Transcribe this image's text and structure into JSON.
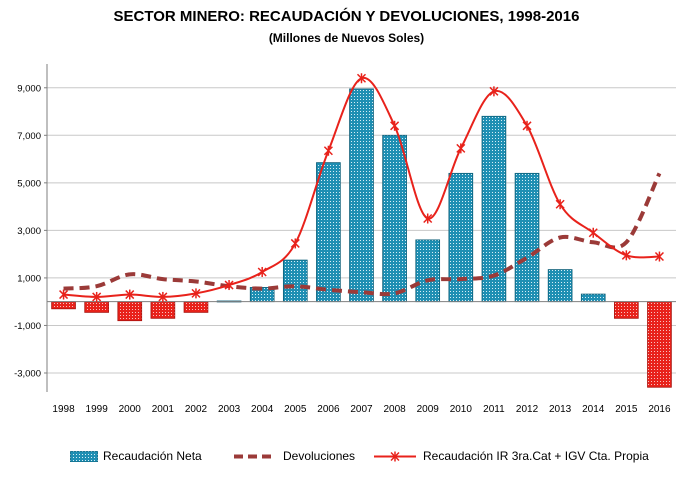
{
  "chart_data": {
    "type": "bar",
    "title": "SECTOR MINERO: RECAUDACIÓN Y DEVOLUCIONES, 1998-2016",
    "subtitle": "(Millones de Nuevos Soles)",
    "categories": [
      "1998",
      "1999",
      "2000",
      "2001",
      "2002",
      "2003",
      "2004",
      "2005",
      "2006",
      "2007",
      "2008",
      "2009",
      "2010",
      "2011",
      "2012",
      "2013",
      "2014",
      "2015",
      "2016"
    ],
    "ylim": [
      -3800,
      10000
    ],
    "yticks": [
      -3000,
      -1000,
      1000,
      3000,
      5000,
      7000,
      9000
    ],
    "ytick_labels": [
      "-3,000",
      "-1,000",
      "1,000",
      "3,000",
      "5,000",
      "7,000",
      "9,000"
    ],
    "grid": true,
    "legend_position": "bottom",
    "series": [
      {
        "name": "Recaudación Neta",
        "kind": "bar",
        "color": "#1f8fb3",
        "negative_color": "#e8221b",
        "values": [
          -300,
          -450,
          -800,
          -700,
          -450,
          30,
          600,
          1750,
          5850,
          8950,
          7000,
          2600,
          5400,
          7800,
          5400,
          1350,
          320,
          -700,
          -3600
        ]
      },
      {
        "name": "Devoluciones",
        "kind": "line-dashed",
        "color": "#9b3a38",
        "values": [
          550,
          650,
          1150,
          950,
          850,
          650,
          550,
          650,
          500,
          400,
          350,
          900,
          950,
          1100,
          1850,
          2700,
          2500,
          2500,
          5400
        ]
      },
      {
        "name": "Recaudación IR 3ra.Cat + IGV Cta. Propia",
        "kind": "line-marker",
        "color": "#e8221b",
        "values": [
          300,
          200,
          300,
          200,
          350,
          700,
          1250,
          2450,
          6350,
          9400,
          7400,
          3500,
          6450,
          8850,
          7400,
          4100,
          2900,
          1950,
          1900
        ]
      }
    ]
  }
}
